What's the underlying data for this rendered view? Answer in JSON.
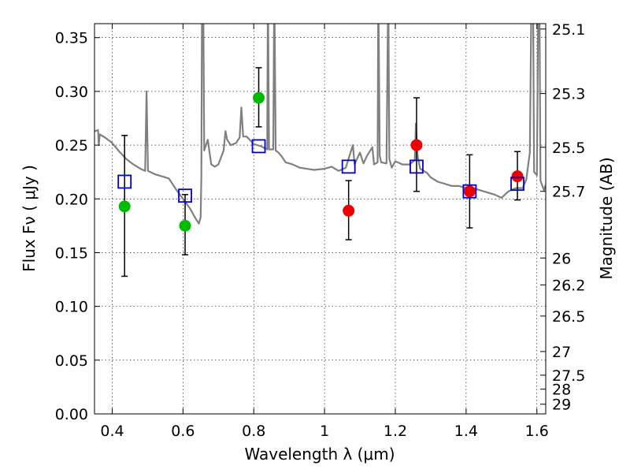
{
  "chart_data": {
    "type": "scatter",
    "title": "",
    "xlabel": "Wavelength  λ (μm)",
    "ylabel": "Flux  Fν  ( μJy )",
    "y2label": "Magnitude (AB)",
    "xlim": [
      0.35,
      1.625
    ],
    "ylim": [
      0.0,
      0.363
    ],
    "grid": true,
    "x_ticks": [
      {
        "value": 0.4,
        "label": "0.4"
      },
      {
        "value": 0.6,
        "label": "0.6"
      },
      {
        "value": 0.8,
        "label": "0.8"
      },
      {
        "value": 1.0,
        "label": "1"
      },
      {
        "value": 1.2,
        "label": "1.2"
      },
      {
        "value": 1.4,
        "label": "1.4"
      },
      {
        "value": 1.6,
        "label": "1.6"
      }
    ],
    "y_ticks": [
      {
        "value": 0.0,
        "label": "0.00"
      },
      {
        "value": 0.05,
        "label": "0.05"
      },
      {
        "value": 0.1,
        "label": "0.10"
      },
      {
        "value": 0.15,
        "label": "0.15"
      },
      {
        "value": 0.2,
        "label": "0.20"
      },
      {
        "value": 0.25,
        "label": "0.25"
      },
      {
        "value": 0.3,
        "label": "0.30"
      },
      {
        "value": 0.35,
        "label": "0.35"
      }
    ],
    "mag_ticks": [
      {
        "value": 0.358,
        "label": "25.1"
      },
      {
        "value": 0.298,
        "label": "25.3"
      },
      {
        "value": 0.248,
        "label": "25.5"
      },
      {
        "value": 0.207,
        "label": "25.7"
      },
      {
        "value": 0.145,
        "label": "26"
      },
      {
        "value": 0.12,
        "label": "26.2"
      },
      {
        "value": 0.091,
        "label": "26.5"
      },
      {
        "value": 0.058,
        "label": "27"
      },
      {
        "value": 0.036,
        "label": "27.5"
      },
      {
        "value": 0.023,
        "label": "28"
      },
      {
        "value": 0.009,
        "label": "29"
      }
    ],
    "series": [
      {
        "color": "#00bb00",
        "marker": "circle",
        "points": [
          {
            "x": 0.435,
            "y": 0.193,
            "yerr_low": 0.065,
            "yerr_high": 0.066
          },
          {
            "x": 0.606,
            "y": 0.175,
            "yerr_low": 0.027,
            "yerr_high": 0.029
          },
          {
            "x": 0.814,
            "y": 0.294,
            "yerr_low": 0.027,
            "yerr_high": 0.028
          }
        ]
      },
      {
        "color": "#ee0000",
        "marker": "circle",
        "points": [
          {
            "x": 1.068,
            "y": 0.189,
            "yerr_low": 0.027,
            "yerr_high": 0.028
          },
          {
            "x": 1.26,
            "y": 0.25,
            "yerr_low": 0.043,
            "yerr_high": 0.044
          },
          {
            "x": 1.41,
            "y": 0.207,
            "yerr_low": 0.034,
            "yerr_high": 0.034
          },
          {
            "x": 1.545,
            "y": 0.221,
            "yerr_low": 0.022,
            "yerr_high": 0.023
          }
        ]
      },
      {
        "color": "#0000cc",
        "marker": "open-square",
        "points": [
          {
            "x": 0.435,
            "y": 0.216
          },
          {
            "x": 0.606,
            "y": 0.203
          },
          {
            "x": 0.814,
            "y": 0.249
          },
          {
            "x": 1.068,
            "y": 0.23
          },
          {
            "x": 1.26,
            "y": 0.23
          },
          {
            "x": 1.41,
            "y": 0.207
          },
          {
            "x": 1.545,
            "y": 0.214
          }
        ]
      }
    ],
    "sed_model": {
      "color": "#808080",
      "points": [
        [
          0.35,
          0.263
        ],
        [
          0.36,
          0.264
        ],
        [
          0.362,
          0.25
        ],
        [
          0.365,
          0.26
        ],
        [
          0.38,
          0.257
        ],
        [
          0.4,
          0.252
        ],
        [
          0.42,
          0.244
        ],
        [
          0.44,
          0.237
        ],
        [
          0.46,
          0.232
        ],
        [
          0.48,
          0.228
        ],
        [
          0.493,
          0.226
        ],
        [
          0.497,
          0.3
        ],
        [
          0.501,
          0.226
        ],
        [
          0.52,
          0.223
        ],
        [
          0.54,
          0.221
        ],
        [
          0.56,
          0.219
        ],
        [
          0.58,
          0.209
        ],
        [
          0.6,
          0.2
        ],
        [
          0.62,
          0.191
        ],
        [
          0.635,
          0.182
        ],
        [
          0.645,
          0.177
        ],
        [
          0.65,
          0.183
        ],
        [
          0.652,
          0.222
        ],
        [
          0.654,
          0.4
        ],
        [
          0.657,
          0.4
        ],
        [
          0.66,
          0.245
        ],
        [
          0.67,
          0.255
        ],
        [
          0.68,
          0.232
        ],
        [
          0.69,
          0.23
        ],
        [
          0.7,
          0.232
        ],
        [
          0.715,
          0.245
        ],
        [
          0.72,
          0.263
        ],
        [
          0.725,
          0.255
        ],
        [
          0.735,
          0.25
        ],
        [
          0.75,
          0.252
        ],
        [
          0.76,
          0.257
        ],
        [
          0.765,
          0.285
        ],
        [
          0.77,
          0.258
        ],
        [
          0.78,
          0.258
        ],
        [
          0.8,
          0.251
        ],
        [
          0.82,
          0.249
        ],
        [
          0.838,
          0.246
        ],
        [
          0.84,
          0.4
        ],
        [
          0.843,
          0.246
        ],
        [
          0.855,
          0.246
        ],
        [
          0.858,
          0.4
        ],
        [
          0.862,
          0.245
        ],
        [
          0.87,
          0.243
        ],
        [
          0.88,
          0.239
        ],
        [
          0.89,
          0.234
        ],
        [
          0.91,
          0.232
        ],
        [
          0.93,
          0.229
        ],
        [
          0.95,
          0.228
        ],
        [
          0.97,
          0.227
        ],
        [
          1.0,
          0.228
        ],
        [
          1.02,
          0.23
        ],
        [
          1.04,
          0.226
        ],
        [
          1.06,
          0.229
        ],
        [
          1.08,
          0.25
        ],
        [
          1.085,
          0.232
        ],
        [
          1.09,
          0.236
        ],
        [
          1.1,
          0.243
        ],
        [
          1.11,
          0.233
        ],
        [
          1.12,
          0.24
        ],
        [
          1.135,
          0.248
        ],
        [
          1.14,
          0.232
        ],
        [
          1.15,
          0.234
        ],
        [
          1.152,
          0.4
        ],
        [
          1.156,
          0.24
        ],
        [
          1.16,
          0.234
        ],
        [
          1.175,
          0.233
        ],
        [
          1.18,
          0.4
        ],
        [
          1.183,
          0.237
        ],
        [
          1.19,
          0.229
        ],
        [
          1.2,
          0.235
        ],
        [
          1.22,
          0.232
        ],
        [
          1.24,
          0.232
        ],
        [
          1.255,
          0.236
        ],
        [
          1.258,
          0.27
        ],
        [
          1.263,
          0.24
        ],
        [
          1.27,
          0.228
        ],
        [
          1.29,
          0.224
        ],
        [
          1.3,
          0.22
        ],
        [
          1.32,
          0.216
        ],
        [
          1.34,
          0.214
        ],
        [
          1.36,
          0.212
        ],
        [
          1.38,
          0.212
        ],
        [
          1.4,
          0.21
        ],
        [
          1.42,
          0.21
        ],
        [
          1.44,
          0.208
        ],
        [
          1.46,
          0.206
        ],
        [
          1.48,
          0.204
        ],
        [
          1.5,
          0.201
        ],
        [
          1.52,
          0.207
        ],
        [
          1.54,
          0.21
        ],
        [
          1.56,
          0.21
        ],
        [
          1.57,
          0.218
        ],
        [
          1.58,
          0.243
        ],
        [
          1.585,
          0.4
        ],
        [
          1.589,
          0.4
        ],
        [
          1.592,
          0.225
        ],
        [
          1.6,
          0.222
        ],
        [
          1.604,
          0.4
        ],
        [
          1.607,
          0.4
        ],
        [
          1.61,
          0.217
        ],
        [
          1.62,
          0.208
        ],
        [
          1.625,
          0.213
        ]
      ]
    }
  }
}
